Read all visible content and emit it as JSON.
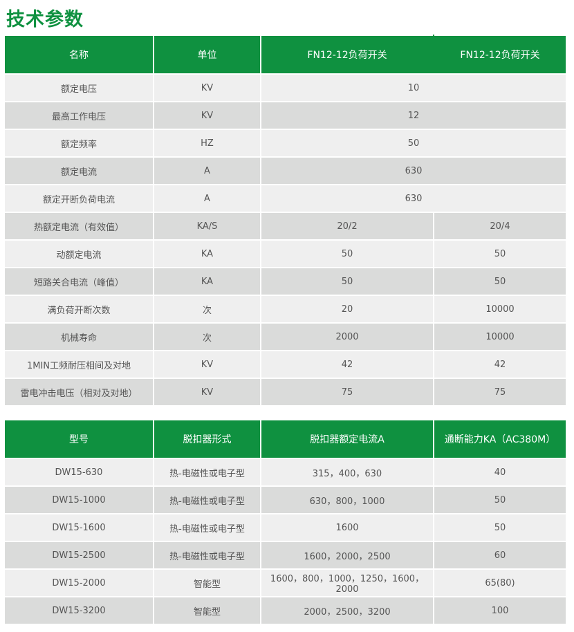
{
  "title": "技术参数",
  "colors": {
    "accent": "#0f9140",
    "row_light": "#efefef",
    "row_dark": "#dadbda"
  },
  "table1": {
    "headers": [
      "名称",
      "单位",
      "FN12-12负荷开关",
      "FN12-12负荷开关"
    ],
    "rows": [
      {
        "name": "额定电压",
        "unit": "KV",
        "values": [
          "10"
        ]
      },
      {
        "name": "最高工作电压",
        "unit": "KV",
        "values": [
          "12"
        ]
      },
      {
        "name": "额定频率",
        "unit": "HZ",
        "values": [
          "50"
        ]
      },
      {
        "name": "额定电流",
        "unit": "A",
        "values": [
          "630"
        ]
      },
      {
        "name": "额定开断负荷电流",
        "unit": "A",
        "values": [
          "630"
        ]
      },
      {
        "name": "热额定电流（有效值）",
        "unit": "KA/S",
        "values": [
          "20/2",
          "20/4"
        ]
      },
      {
        "name": "动额定电流",
        "unit": "KA",
        "values": [
          "50",
          "50"
        ]
      },
      {
        "name": "短路关合电流（峰值）",
        "unit": "KA",
        "values": [
          "50",
          "50"
        ]
      },
      {
        "name": "满负荷开断次数",
        "unit": "次",
        "values": [
          "20",
          "10000"
        ]
      },
      {
        "name": "机械寿命",
        "unit": "次",
        "values": [
          "2000",
          "10000"
        ]
      },
      {
        "name": "1MIN工频耐压相间及对地",
        "unit": "KV",
        "values": [
          "42",
          "42"
        ]
      },
      {
        "name": "雷电冲击电压（相对及对地）",
        "unit": "KV",
        "values": [
          "75",
          "75"
        ]
      }
    ]
  },
  "table2": {
    "headers": [
      "型号",
      "脱扣器形式",
      "脱扣器额定电流A",
      "通断能力KA（AC380M）"
    ],
    "rows": [
      [
        "DW15-630",
        "热-电磁性或电子型",
        "315，400，630",
        "40"
      ],
      [
        "DW15-1000",
        "热-电磁性或电子型",
        "630，800，1000",
        "50"
      ],
      [
        "DW15-1600",
        "热-电磁性或电子型",
        "1600",
        "50"
      ],
      [
        "DW15-2500",
        "热-电磁性或电子型",
        "1600，2000，2500",
        "60"
      ],
      [
        "DW15-2000",
        "智能型",
        "1600，800，1000，1250，1600，2000",
        "65(80)"
      ],
      [
        "DW15-3200",
        "智能型",
        "2000，2500，3200",
        "100"
      ]
    ]
  }
}
